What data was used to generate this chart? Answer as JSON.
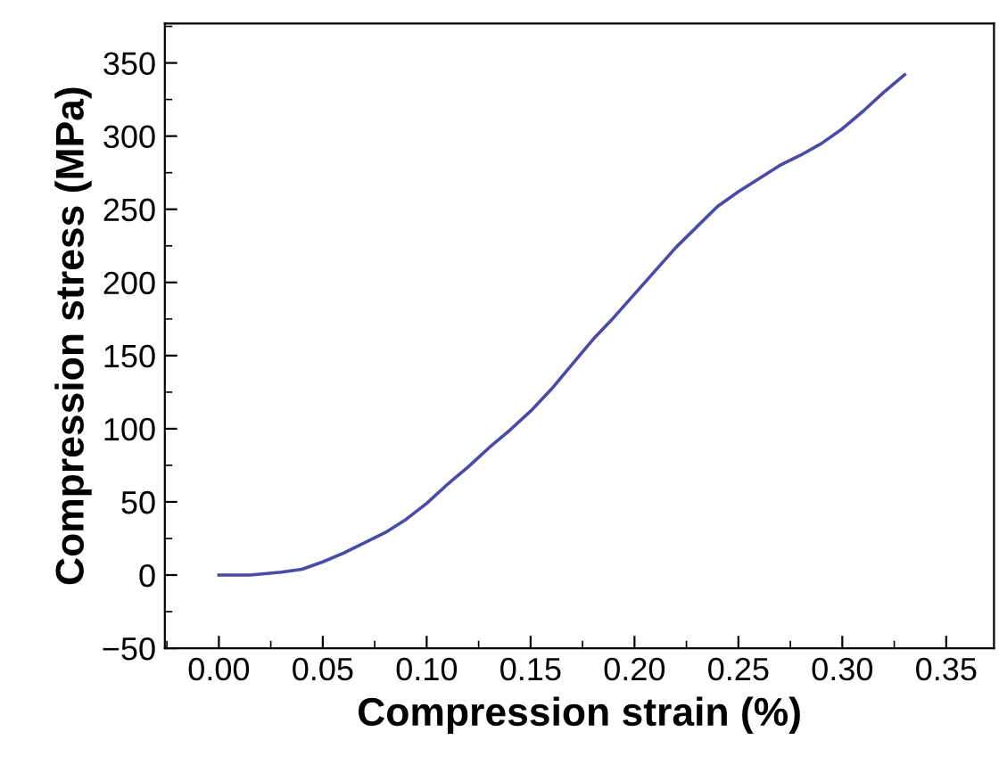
{
  "chart_data": {
    "type": "line",
    "xlabel": "Compression strain (%)",
    "ylabel": "Compression stress (MPa)",
    "x": [
      0.0,
      0.015,
      0.03,
      0.04,
      0.05,
      0.06,
      0.07,
      0.08,
      0.09,
      0.1,
      0.11,
      0.12,
      0.13,
      0.14,
      0.15,
      0.16,
      0.17,
      0.18,
      0.19,
      0.2,
      0.21,
      0.22,
      0.23,
      0.24,
      0.25,
      0.26,
      0.27,
      0.28,
      0.29,
      0.3,
      0.31,
      0.32,
      0.33
    ],
    "series": [
      {
        "color": "#4a4aa8",
        "values": [
          0,
          0,
          2,
          4,
          9,
          15,
          22,
          29,
          38,
          49,
          62,
          74,
          87,
          99,
          112,
          127,
          144,
          161,
          176,
          192,
          208,
          224,
          238,
          252,
          262,
          271,
          280,
          287,
          295,
          305,
          317,
          330,
          342
        ]
      }
    ],
    "xlim": [
      -0.026,
      0.373
    ],
    "ylim": [
      -50,
      377
    ],
    "xticks": [
      {
        "value": 0,
        "label": "0.00"
      },
      {
        "value": 0.05,
        "label": "0.05"
      },
      {
        "value": 0.1,
        "label": "0.10"
      },
      {
        "value": 0.15,
        "label": "0.15"
      },
      {
        "value": 0.2,
        "label": "0.20"
      },
      {
        "value": 0.25,
        "label": "0.25"
      },
      {
        "value": 0.3,
        "label": "0.30"
      },
      {
        "value": 0.35,
        "label": "0.35"
      }
    ],
    "yticks": [
      {
        "value": -50,
        "label": "−50"
      },
      0,
      50,
      100,
      150,
      200,
      250,
      300,
      350
    ],
    "grid": false,
    "legend": false,
    "marker": "none",
    "line_style": "solid"
  }
}
